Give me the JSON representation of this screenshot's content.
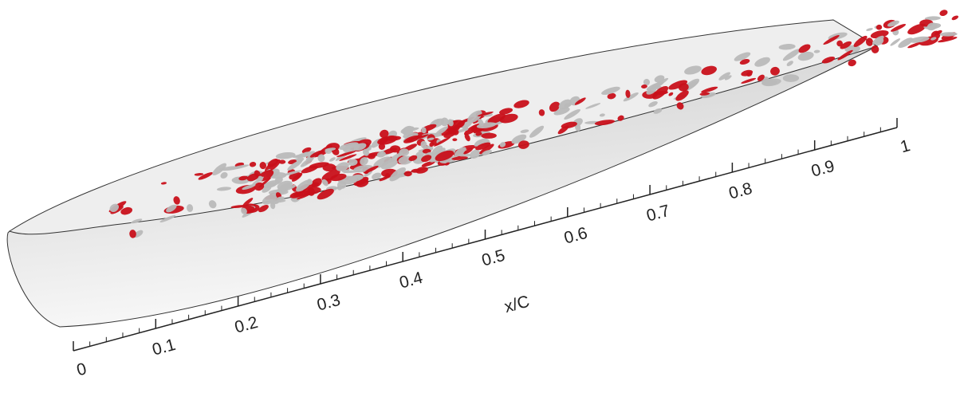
{
  "axis": {
    "label": "x/C",
    "range": [
      0,
      1
    ],
    "ticks": [
      0,
      0.1,
      0.2,
      0.3,
      0.4,
      0.5,
      0.6,
      0.7,
      0.8,
      0.9,
      1
    ]
  }
}
